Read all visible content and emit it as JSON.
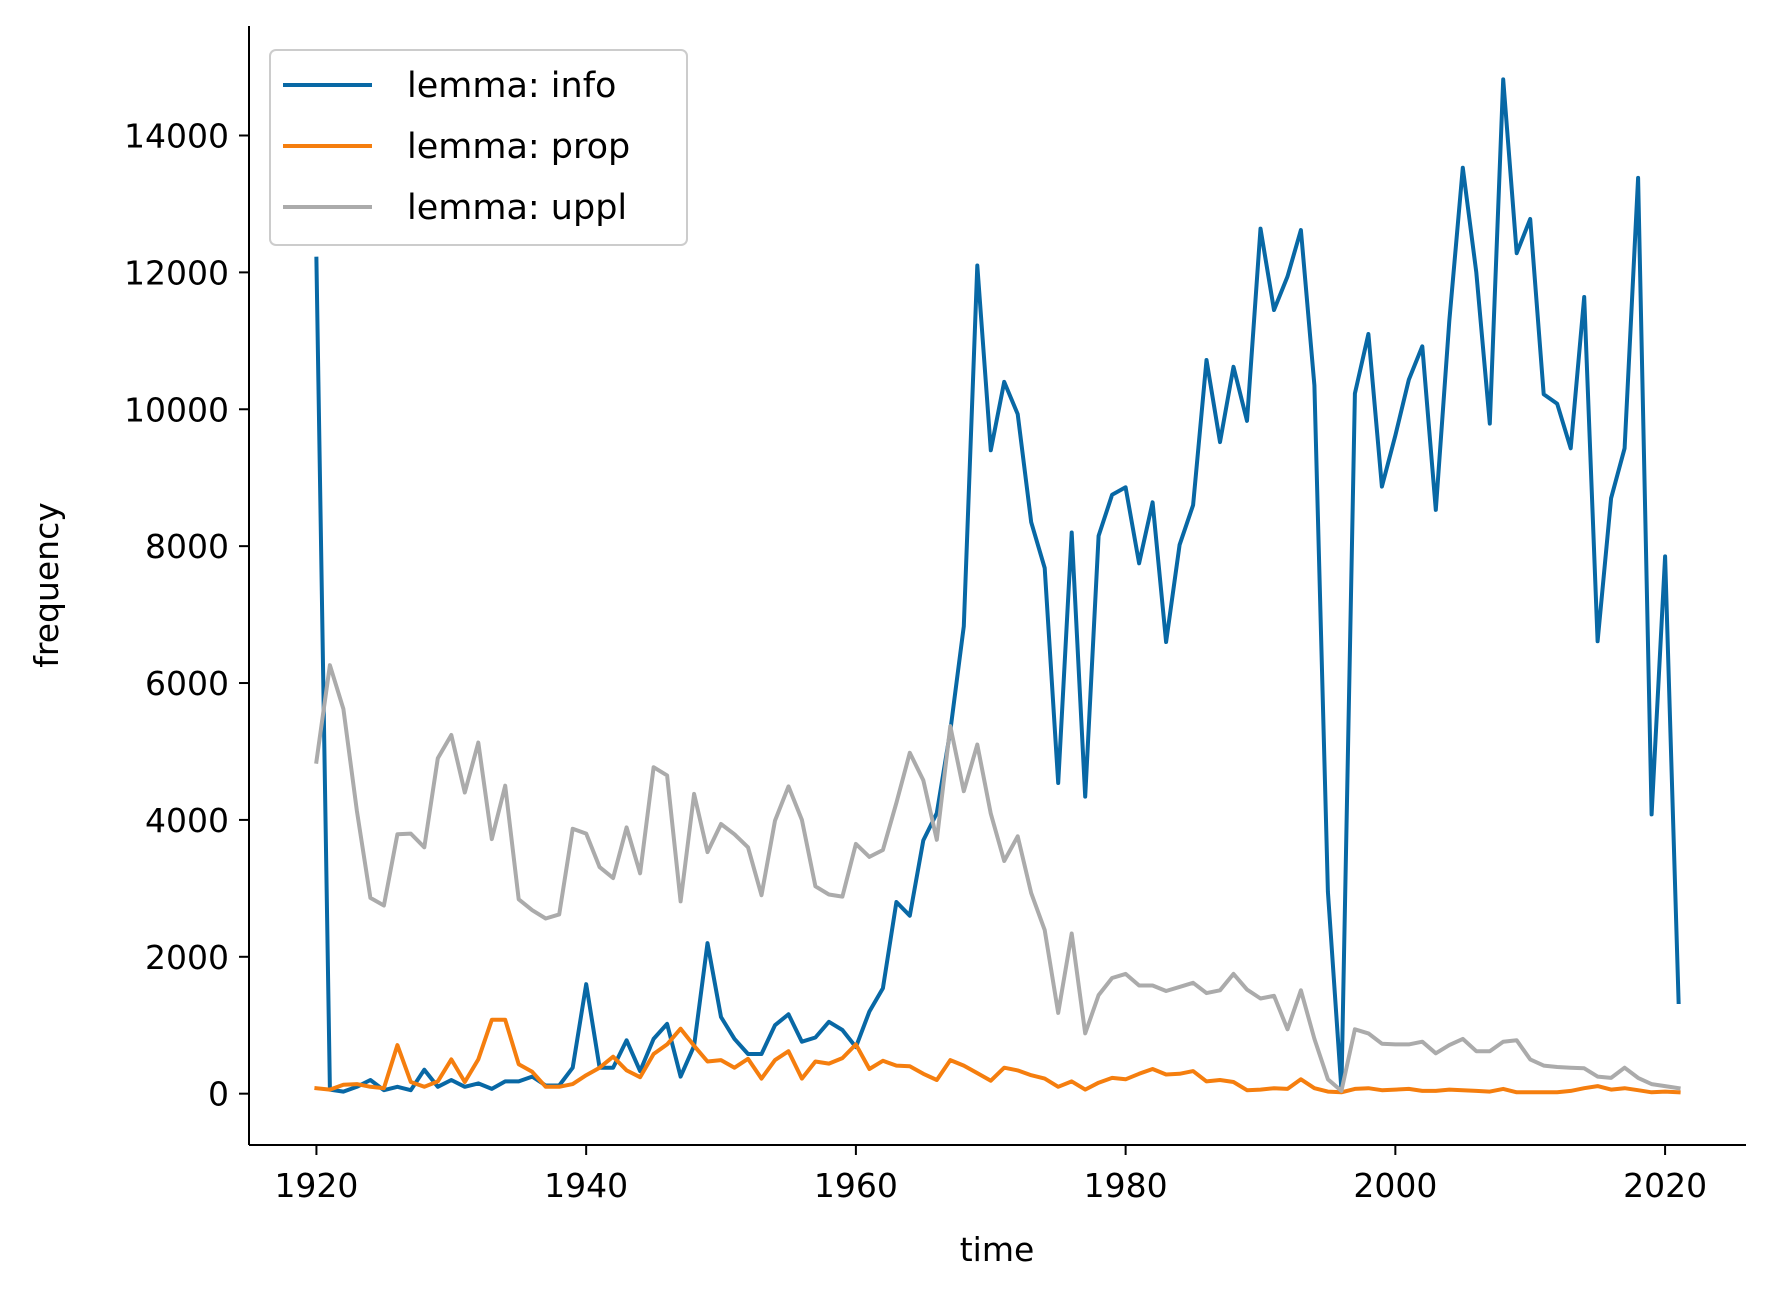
{
  "chart_data": {
    "type": "line",
    "title": "",
    "xlabel": "time",
    "ylabel": "frequency",
    "xlim": [
      1915,
      2026
    ],
    "ylim": [
      -750,
      15600
    ],
    "xticks": [
      1920,
      1940,
      1960,
      1980,
      2000,
      2020
    ],
    "yticks": [
      0,
      2000,
      4000,
      6000,
      8000,
      10000,
      12000,
      14000
    ],
    "grid": false,
    "legend_position": "upper-left",
    "x": [
      1920,
      1921,
      1922,
      1923,
      1924,
      1925,
      1926,
      1927,
      1928,
      1929,
      1930,
      1931,
      1932,
      1933,
      1934,
      1935,
      1936,
      1937,
      1938,
      1939,
      1940,
      1941,
      1942,
      1943,
      1944,
      1945,
      1946,
      1947,
      1948,
      1949,
      1950,
      1951,
      1952,
      1953,
      1954,
      1955,
      1956,
      1957,
      1958,
      1959,
      1960,
      1961,
      1962,
      1963,
      1964,
      1965,
      1966,
      1967,
      1968,
      1969,
      1970,
      1971,
      1972,
      1973,
      1974,
      1975,
      1976,
      1977,
      1978,
      1979,
      1980,
      1981,
      1982,
      1983,
      1984,
      1985,
      1986,
      1987,
      1988,
      1989,
      1990,
      1991,
      1992,
      1993,
      1994,
      1995,
      1996,
      1997,
      1998,
      1999,
      2000,
      2001,
      2002,
      2003,
      2004,
      2005,
      2006,
      2007,
      2008,
      2009,
      2010,
      2011,
      2012,
      2013,
      2014,
      2015,
      2016,
      2017,
      2018,
      2019,
      2020,
      2021
    ],
    "series": [
      {
        "name": "lemma: info",
        "color": "#0868a5",
        "values": [
          12200,
          60,
          30,
          100,
          200,
          50,
          100,
          50,
          350,
          100,
          200,
          100,
          150,
          70,
          180,
          180,
          250,
          120,
          120,
          380,
          1600,
          380,
          380,
          780,
          330,
          800,
          1020,
          250,
          700,
          2200,
          1120,
          800,
          580,
          580,
          1000,
          1160,
          760,
          820,
          1050,
          930,
          680,
          1200,
          1540,
          2800,
          2600,
          3700,
          4100,
          5300,
          6830,
          12100,
          9400,
          10400,
          9930,
          8350,
          7680,
          4540,
          8200,
          4340,
          8150,
          8750,
          8860,
          7750,
          8640,
          6600,
          8020,
          8600,
          10720,
          9520,
          10620,
          9830,
          12640,
          11450,
          11940,
          12620,
          10350,
          2950,
          60,
          10230,
          11100,
          8870,
          9620,
          10430,
          10920,
          8530,
          11290,
          13530,
          12000,
          9790,
          14820,
          12280,
          12780,
          10220,
          10080,
          9430,
          11640,
          6610,
          8700,
          9430,
          13380,
          4080,
          7850,
          1340
        ]
      },
      {
        "name": "lemma: prop",
        "color": "#f57e0e",
        "values": [
          80,
          60,
          130,
          140,
          100,
          80,
          710,
          170,
          100,
          180,
          500,
          170,
          500,
          1080,
          1080,
          430,
          320,
          100,
          100,
          140,
          270,
          380,
          540,
          340,
          240,
          580,
          720,
          950,
          700,
          470,
          490,
          380,
          510,
          220,
          490,
          620,
          220,
          470,
          440,
          520,
          720,
          360,
          480,
          410,
          400,
          290,
          200,
          490,
          410,
          300,
          190,
          380,
          340,
          270,
          220,
          100,
          180,
          60,
          160,
          230,
          210,
          290,
          360,
          280,
          290,
          330,
          180,
          200,
          170,
          50,
          60,
          80,
          70,
          210,
          80,
          30,
          20,
          70,
          80,
          50,
          60,
          70,
          40,
          40,
          60,
          50,
          40,
          30,
          70,
          20,
          20,
          20,
          20,
          40,
          80,
          110,
          60,
          80,
          50,
          20,
          30,
          20
        ]
      },
      {
        "name": "lemma: uppl",
        "color": "#ababab",
        "values": [
          4850,
          6260,
          5620,
          4130,
          2860,
          2750,
          3790,
          3800,
          3600,
          4900,
          5240,
          4400,
          5130,
          3720,
          4500,
          2840,
          2680,
          2560,
          2620,
          3870,
          3800,
          3310,
          3150,
          3890,
          3220,
          4770,
          4650,
          2810,
          4380,
          3530,
          3940,
          3790,
          3600,
          2900,
          3990,
          4490,
          4000,
          3030,
          2910,
          2880,
          3650,
          3460,
          3560,
          4250,
          4980,
          4580,
          3710,
          5370,
          4420,
          5100,
          4090,
          3400,
          3760,
          2930,
          2390,
          1180,
          2340,
          880,
          1440,
          1690,
          1750,
          1580,
          1580,
          1500,
          1560,
          1620,
          1470,
          1510,
          1750,
          1520,
          1390,
          1430,
          940,
          1510,
          800,
          210,
          40,
          940,
          880,
          730,
          720,
          720,
          760,
          590,
          710,
          800,
          620,
          620,
          760,
          780,
          500,
          410,
          390,
          380,
          370,
          250,
          230,
          380,
          230,
          140,
          110,
          80
        ]
      }
    ]
  }
}
